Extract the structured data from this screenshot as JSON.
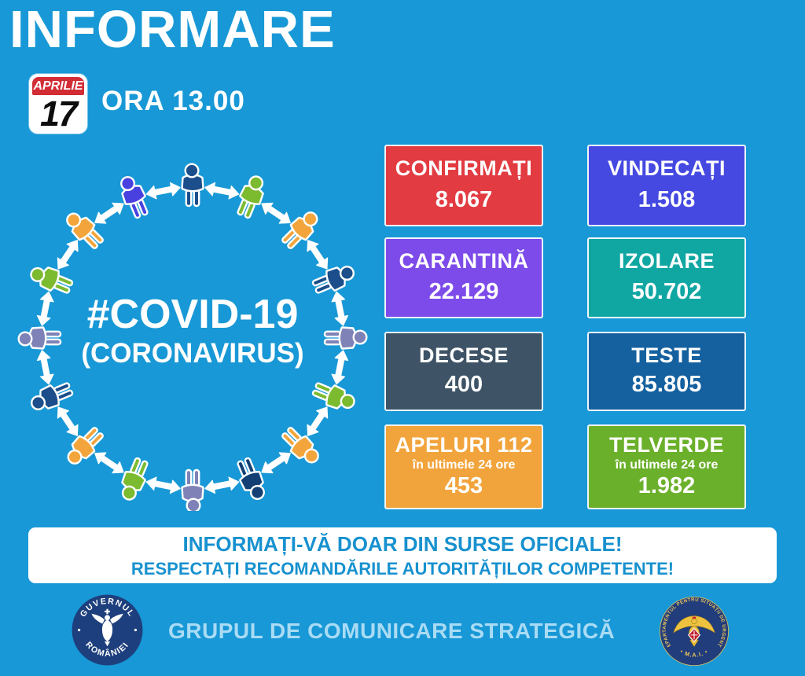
{
  "header": {
    "title": "INFORMARE",
    "calendar_month": "APRILIE",
    "calendar_day": "17",
    "time": "ORA 13.00"
  },
  "diagram": {
    "hashtag": "#COVID-19",
    "subtitle": "(CORONAVIRUS)",
    "arrow_color": "#FFFFFF",
    "people_colors": [
      "#1B4E8A",
      "#7CBA2F",
      "#F3A53C",
      "#1B4E8A",
      "#7E82B6",
      "#7CBA2F",
      "#F3A53C",
      "#133F74",
      "#7E82B6",
      "#7CBA2F",
      "#F3A53C",
      "#1B4E8A",
      "#7E82B6",
      "#7CBA2F",
      "#F3A53C",
      "#4840DF"
    ]
  },
  "stats": {
    "boxes": [
      {
        "id": "confirmati",
        "label": "CONFIRMAȚI",
        "value": "8.067",
        "color": "#E23B41"
      },
      {
        "id": "vindecati",
        "label": "VINDECAȚI",
        "value": "1.508",
        "color": "#4549E1"
      },
      {
        "id": "carantina",
        "label": "CARANTINĂ",
        "value": "22.129",
        "color": "#7D4BE9"
      },
      {
        "id": "izolare",
        "label": "IZOLARE",
        "value": "50.702",
        "color": "#10A7A3"
      },
      {
        "id": "decese",
        "label": "DECESE",
        "value": "400",
        "color": "#3E5366"
      },
      {
        "id": "teste",
        "label": "TESTE",
        "value": "85.805",
        "color": "#15619F"
      },
      {
        "id": "apeluri-112",
        "label": "APELURI 112",
        "subtitle": "în ultimele 24 ore",
        "value": "453",
        "color": "#F2A43C"
      },
      {
        "id": "telverde",
        "label": "TELVERDE",
        "subtitle": "în ultimele 24 ore",
        "value": "1.982",
        "color": "#6BB02B"
      }
    ]
  },
  "banner": {
    "line1": "INFORMAȚI-VĂ DOAR DIN SURSE OFICIALE!",
    "line2": "RESPECTAȚI RECOMANDĂRILE AUTORITĂȚILOR COMPETENTE!"
  },
  "footer": {
    "center_text": "GRUPUL DE COMUNICARE STRATEGICĂ",
    "gov_logo": {
      "top_text": "GUVERNUL",
      "bottom_text": "ROMÂNIEI"
    },
    "dsu_logo": {
      "ring_text": "DEPARTAMENTUL PENTRU SITUAȚII DE URGENȚĂ",
      "bottom_text": "• M.A.I. •"
    }
  },
  "chart_data": {
    "type": "table",
    "title": "INFORMARE 17 APRILIE ORA 13.00 — #COVID-19 (CORONAVIRUS)",
    "categories": [
      "CONFIRMAȚI",
      "VINDECAȚI",
      "CARANTINĂ",
      "IZOLARE",
      "DECESE",
      "TESTE",
      "APELURI 112 (în ultimele 24 ore)",
      "TELVERDE (în ultimele 24 ore)"
    ],
    "values": [
      8067,
      1508,
      22129,
      50702,
      400,
      85805,
      453,
      1982
    ],
    "layout": "2-column grid of colored stat tiles",
    "tile_colors": [
      "#E23B41",
      "#4549E1",
      "#7D4BE9",
      "#10A7A3",
      "#3E5366",
      "#15619F",
      "#F2A43C",
      "#6BB02B"
    ]
  }
}
